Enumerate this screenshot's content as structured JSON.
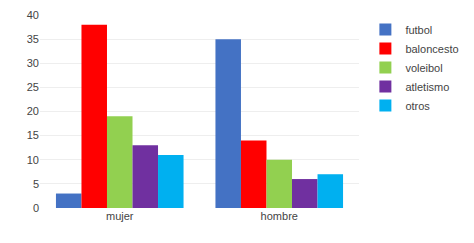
{
  "chart_data": {
    "type": "bar",
    "categories": [
      "mujer",
      "hombre"
    ],
    "series": [
      {
        "name": "futbol",
        "color": "#4472C4",
        "values": [
          3,
          35
        ]
      },
      {
        "name": "baloncesto",
        "color": "#FF0000",
        "values": [
          38,
          14
        ]
      },
      {
        "name": "voleibol",
        "color": "#92D050",
        "values": [
          19,
          10
        ]
      },
      {
        "name": "atletismo",
        "color": "#7030A0",
        "values": [
          13,
          6
        ]
      },
      {
        "name": "otros",
        "color": "#00B0F0",
        "values": [
          11,
          7
        ]
      }
    ],
    "ylim": [
      0,
      40
    ],
    "yticks": [
      0,
      5,
      10,
      15,
      20,
      25,
      30,
      35,
      40
    ],
    "grid": true,
    "legend": "right"
  }
}
